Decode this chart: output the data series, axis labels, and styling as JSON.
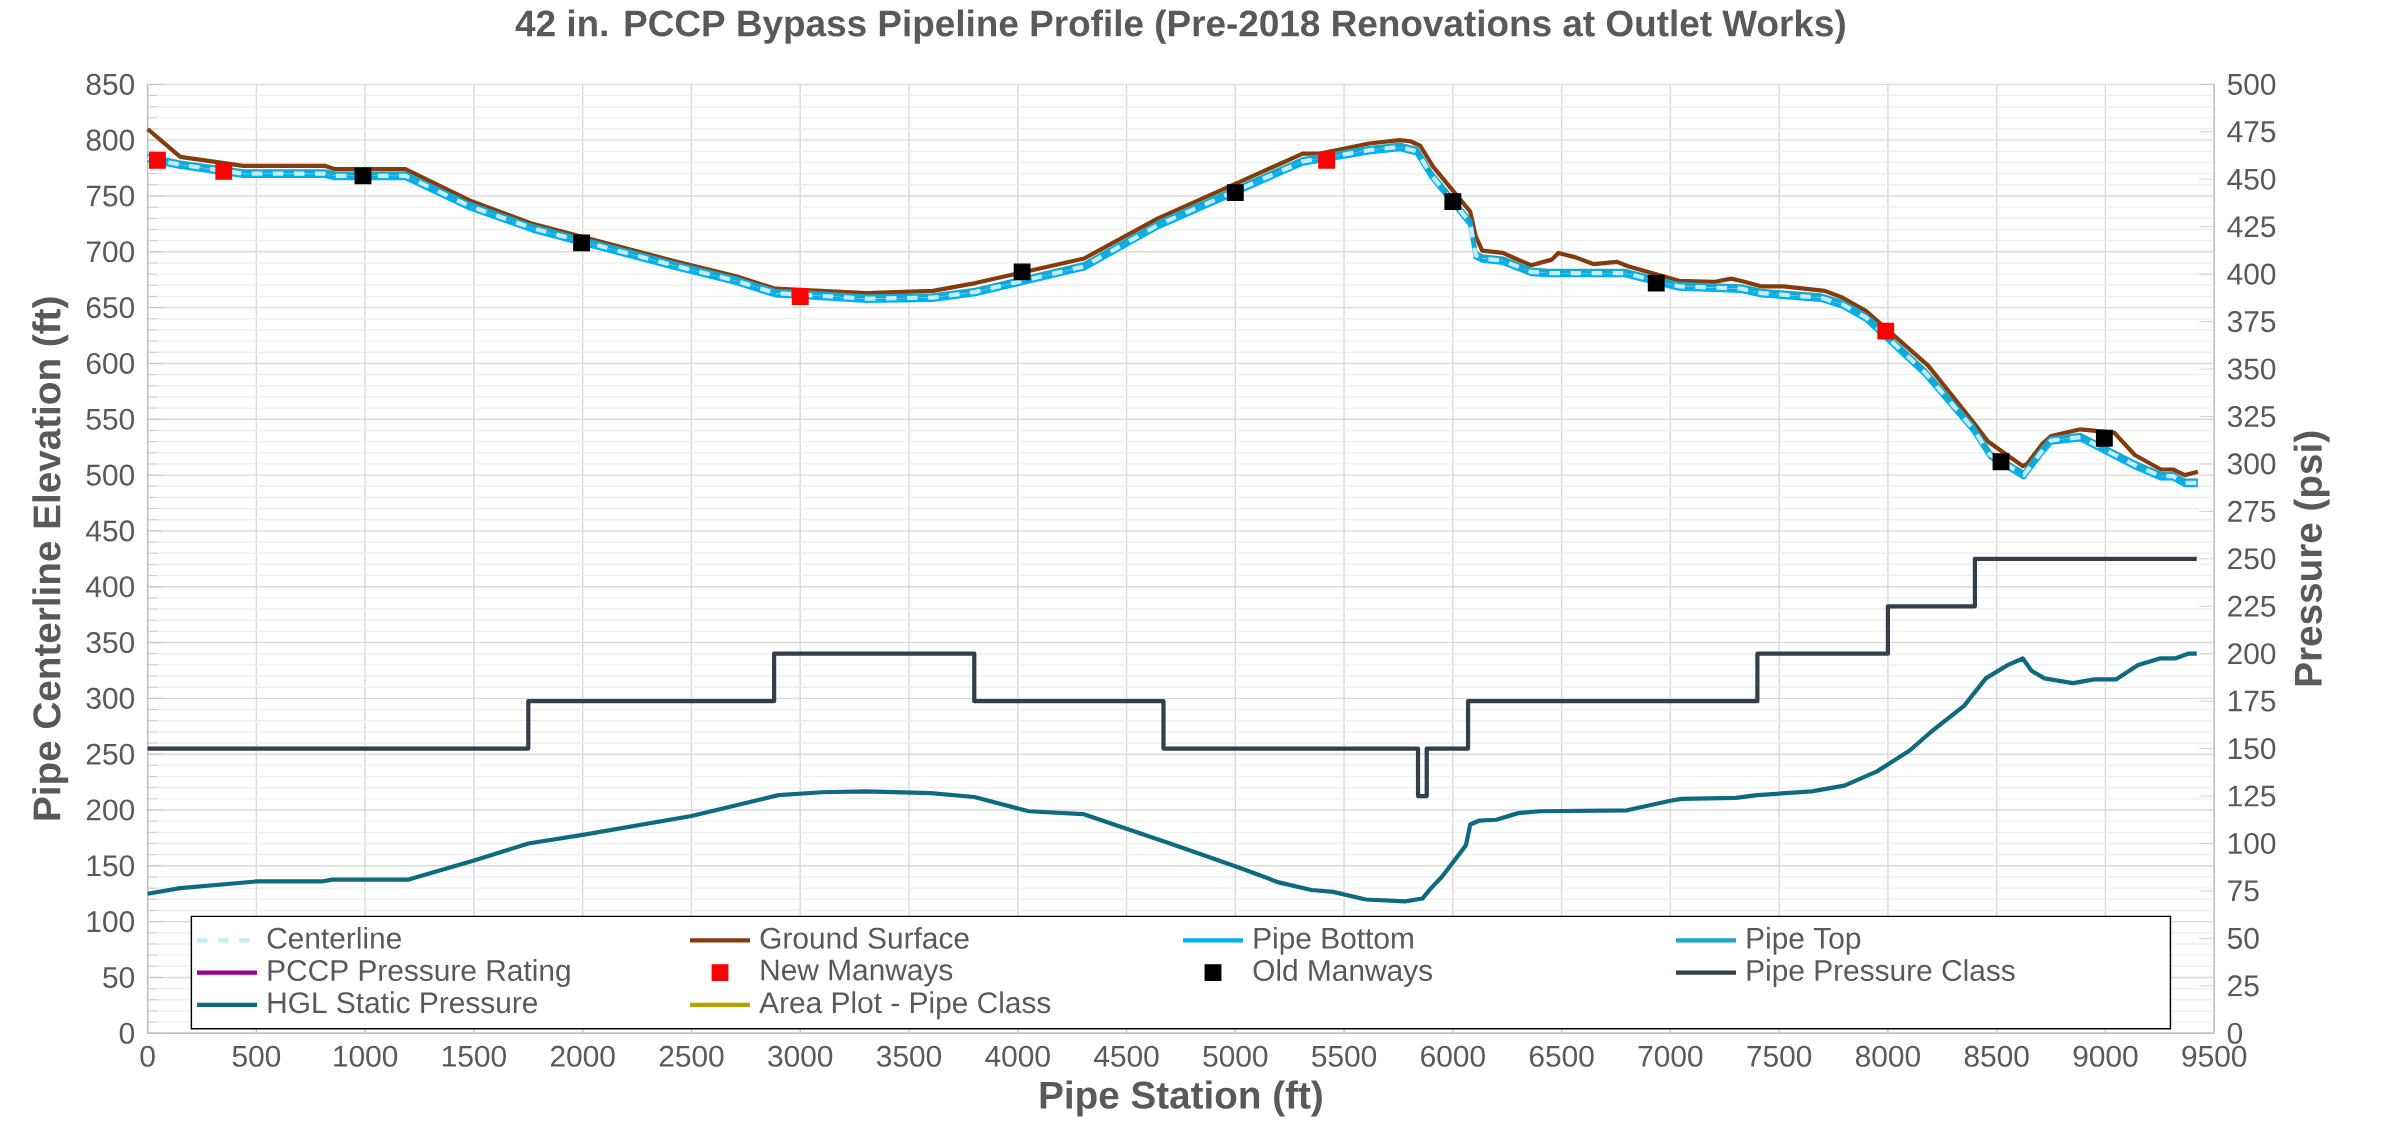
{
  "chart_data": {
    "type": "line",
    "title": "42 in. PCCP Bypass Pipeline Profile (Pre-2018 Renovations at Outlet Works)",
    "xlabel": "Pipe Station (ft)",
    "ylabel": "Pipe Centerline Elevation (ft)",
    "y2label": "Pressure (psi)",
    "xlim": [
      0,
      9500
    ],
    "xticks": [
      0,
      500,
      1000,
      1500,
      2000,
      2500,
      3000,
      3500,
      4000,
      4500,
      5000,
      5500,
      6000,
      6500,
      7000,
      7500,
      8000,
      8500,
      9000,
      9500
    ],
    "ylim": [
      0,
      850
    ],
    "yticks": [
      0,
      50,
      100,
      150,
      200,
      250,
      300,
      350,
      400,
      450,
      500,
      550,
      600,
      650,
      700,
      750,
      800,
      850
    ],
    "y2lim": [
      0,
      500
    ],
    "y2ticks": [
      0,
      25,
      50,
      75,
      100,
      125,
      150,
      175,
      200,
      225,
      250,
      275,
      300,
      325,
      350,
      375,
      400,
      425,
      450,
      475,
      500
    ],
    "grid": true,
    "legend": "bottom",
    "series": [
      {
        "name": "Centerline",
        "color": "#c5ecfa",
        "line_style": "dashed",
        "x": [
          0,
          150,
          440,
          815,
          860,
          1185,
          1480,
          1770,
          2415,
          2705,
          2885,
          3305,
          3610,
          3805,
          4305,
          4645,
          5310,
          5615,
          5755,
          5835,
          5900,
          6080,
          6105,
          6135,
          6230,
          6360,
          6440,
          6790,
          7040,
          7325,
          7420,
          7690,
          7790,
          7900,
          8170,
          8390,
          8470,
          8625,
          8710,
          8750,
          8885,
          9135,
          9255,
          9310,
          9365,
          9425
        ],
        "values": [
          784,
          778,
          770,
          770,
          768,
          768,
          741,
          721,
          688,
          674,
          663,
          658,
          659,
          664,
          687,
          724,
          781,
          791,
          794,
          790,
          769,
          726,
          697,
          694,
          692,
          682,
          681,
          681,
          669,
          667,
          663,
          659,
          653,
          641,
          592,
          542,
          518,
          500,
          522,
          531,
          534,
          509,
          499,
          499,
          493,
          493
        ]
      },
      {
        "name": "Ground Surface",
        "color": "#843c0c",
        "x": [
          0,
          150,
          440,
          815,
          860,
          1185,
          1480,
          1770,
          2415,
          2705,
          2885,
          3305,
          3610,
          3805,
          4305,
          4645,
          5105,
          5310,
          5390,
          5615,
          5755,
          5805,
          5850,
          5910,
          6080,
          6105,
          6135,
          6230,
          6310,
          6360,
          6455,
          6485,
          6565,
          6645,
          6755,
          6805,
          7040,
          7200,
          7280,
          7345,
          7420,
          7520,
          7710,
          7790,
          7900,
          8185,
          8390,
          8460,
          8620,
          8640,
          8710,
          8750,
          8885,
          9040,
          9135,
          9255,
          9310,
          9365,
          9425
        ],
        "values": [
          810,
          785,
          777,
          777,
          774,
          774,
          746,
          725,
          692,
          678,
          667,
          663,
          665,
          672,
          694,
          730,
          770,
          788,
          788,
          797,
          800,
          799,
          795,
          776,
          736,
          714,
          701,
          699,
          692,
          688,
          693,
          699,
          695,
          689,
          691,
          687,
          674,
          673,
          676,
          673,
          669,
          669,
          665,
          659,
          647,
          598,
          548,
          530,
          508,
          510,
          528,
          535,
          541,
          538,
          518,
          505,
          505,
          500,
          503
        ]
      },
      {
        "name": "Pipe Bottom",
        "color": "#00b0f0",
        "x": [
          0,
          150,
          440,
          815,
          860,
          1185,
          1480,
          1770,
          2415,
          2705,
          2885,
          3305,
          3610,
          3805,
          4305,
          4645,
          5310,
          5615,
          5755,
          5835,
          5900,
          6080,
          6105,
          6135,
          6230,
          6360,
          6440,
          6790,
          7040,
          7325,
          7420,
          7690,
          7790,
          7900,
          8170,
          8390,
          8470,
          8625,
          8710,
          8750,
          8885,
          9135,
          9255,
          9310,
          9365,
          9425
        ],
        "values": [
          782,
          776,
          768,
          768,
          766,
          766,
          739,
          719,
          686,
          672,
          661,
          656,
          657,
          662,
          685,
          722,
          779,
          789,
          792,
          788,
          767,
          724,
          695,
          692,
          690,
          680,
          679,
          679,
          667,
          665,
          661,
          657,
          651,
          639,
          590,
          540,
          516,
          498,
          520,
          529,
          532,
          507,
          497,
          497,
          491,
          491
        ]
      },
      {
        "name": "Pipe Top",
        "color": "#17a8d0",
        "x": [
          0,
          150,
          440,
          815,
          860,
          1185,
          1480,
          1770,
          2415,
          2705,
          2885,
          3305,
          3610,
          3805,
          4305,
          4645,
          5310,
          5615,
          5755,
          5835,
          5900,
          6080,
          6105,
          6135,
          6230,
          6360,
          6440,
          6790,
          7040,
          7325,
          7420,
          7690,
          7790,
          7900,
          8170,
          8390,
          8470,
          8625,
          8710,
          8750,
          8885,
          9135,
          9255,
          9310,
          9365,
          9425
        ],
        "values": [
          786,
          780,
          772,
          772,
          770,
          770,
          743,
          723,
          690,
          676,
          665,
          660,
          661,
          666,
          689,
          726,
          783,
          793,
          796,
          792,
          771,
          728,
          699,
          696,
          694,
          684,
          683,
          683,
          671,
          669,
          665,
          661,
          655,
          643,
          594,
          544,
          520,
          502,
          524,
          533,
          536,
          511,
          501,
          501,
          495,
          495
        ]
      },
      {
        "name": "PCCP Pressure Rating",
        "color": "#990099",
        "axis": "y2"
      },
      {
        "name": "New Manways",
        "color": "#ff0000",
        "type": "scatter",
        "marker": "square",
        "x": [
          45,
          350,
          3000,
          5420,
          7990
        ],
        "values": [
          782,
          772,
          660,
          782,
          629
        ]
      },
      {
        "name": "Old Manways",
        "color": "#000000",
        "type": "scatter",
        "marker": "square",
        "x": [
          990,
          1995,
          4020,
          5000,
          6000,
          6935,
          8520,
          8995
        ],
        "values": [
          768,
          708,
          682,
          753,
          745,
          672,
          512,
          533
        ]
      },
      {
        "name": "Pipe Pressure Class",
        "color": "#333f48",
        "type": "step",
        "axis": "y2",
        "x": [
          0,
          1750,
          2880,
          3800,
          4670,
          5840,
          5880,
          6070,
          7400,
          8000,
          8400,
          9420
        ],
        "values": [
          150,
          175,
          200,
          175,
          150,
          125,
          150,
          175,
          200,
          225,
          250,
          250
        ]
      },
      {
        "name": "HGL Static Pressure",
        "color": "#0e6b7f",
        "axis": "y2",
        "x": [
          0,
          150,
          500,
          800,
          850,
          1200,
          1500,
          1750,
          2000,
          2500,
          2900,
          3100,
          3300,
          3600,
          3800,
          4050,
          4300,
          4700,
          5000,
          5200,
          5350,
          5450,
          5600,
          5780,
          5860,
          5900,
          5950,
          6060,
          6080,
          6120,
          6200,
          6300,
          6400,
          6800,
          7000,
          7050,
          7300,
          7400,
          7650,
          7800,
          7950,
          8100,
          8200,
          8350,
          8450,
          8550,
          8620,
          8660,
          8720,
          8850,
          8950,
          9050,
          9150,
          9250,
          9320,
          9380,
          9420
        ],
        "values": [
          73.5,
          76.5,
          80,
          80,
          81,
          81,
          91,
          100,
          104.5,
          114.5,
          125.5,
          127,
          127.5,
          126.5,
          124.5,
          117,
          115.5,
          100,
          88,
          79.5,
          75.5,
          74.5,
          70.5,
          69.5,
          71,
          76.5,
          82.5,
          99,
          110,
          112,
          112.5,
          116,
          117,
          117.5,
          122.5,
          123.5,
          124,
          125.5,
          127.5,
          130.5,
          138,
          149,
          159,
          172.5,
          187,
          194,
          197.5,
          191,
          187,
          184.5,
          186.5,
          186.5,
          194,
          197.5,
          197.5,
          200,
          200
        ]
      },
      {
        "name": "Area Plot - Pipe Class",
        "color": "#b8a000",
        "axis": "y2"
      }
    ]
  }
}
